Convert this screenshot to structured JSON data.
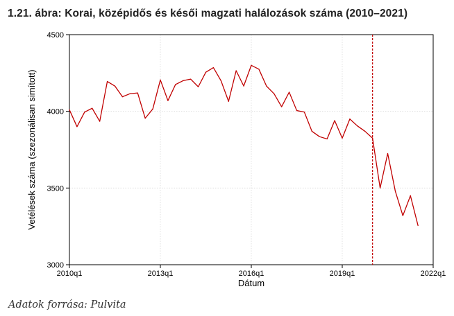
{
  "figure": {
    "title": "1.21. ábra: Korai, középidős és késői magzati halálozások száma (2010–2021)",
    "source": "Adatok forrása: Pulvita"
  },
  "chart_data": {
    "type": "line",
    "xlabel": "Dátum",
    "ylabel": "Vetélések száma (szezonálisan simított)",
    "ylim": [
      3000,
      4500
    ],
    "yticks": [
      3000,
      3500,
      4000,
      4500
    ],
    "xlim": [
      "2010q1",
      "2022q1"
    ],
    "xticks": [
      "2010q1",
      "2013q1",
      "2016q1",
      "2019q1",
      "2022q1"
    ],
    "grid": true,
    "line_color": "#c00000",
    "x": [
      "2010q1",
      "2010q2",
      "2010q3",
      "2010q4",
      "2011q1",
      "2011q2",
      "2011q3",
      "2011q4",
      "2012q1",
      "2012q2",
      "2012q3",
      "2012q4",
      "2013q1",
      "2013q2",
      "2013q3",
      "2013q4",
      "2014q1",
      "2014q2",
      "2014q3",
      "2014q4",
      "2015q1",
      "2015q2",
      "2015q3",
      "2015q4",
      "2016q1",
      "2016q2",
      "2016q3",
      "2016q4",
      "2017q1",
      "2017q2",
      "2017q3",
      "2017q4",
      "2018q1",
      "2018q2",
      "2018q3",
      "2018q4",
      "2019q1",
      "2019q2",
      "2019q3",
      "2019q4",
      "2020q1",
      "2020q2",
      "2020q3",
      "2020q4",
      "2021q1",
      "2021q2",
      "2021q3"
    ],
    "values": [
      4010,
      3900,
      3995,
      4020,
      3935,
      4195,
      4165,
      4095,
      4115,
      4120,
      3955,
      4015,
      4205,
      4070,
      4175,
      4200,
      4210,
      4160,
      4255,
      4285,
      4200,
      4065,
      4265,
      4165,
      4300,
      4275,
      4165,
      4115,
      4030,
      4125,
      4005,
      3995,
      3870,
      3835,
      3820,
      3940,
      3825,
      3950,
      3905,
      3870,
      3825,
      3500,
      3725,
      3480,
      3320,
      3450,
      3255
    ],
    "reference_line": {
      "x": "2020q1"
    }
  }
}
